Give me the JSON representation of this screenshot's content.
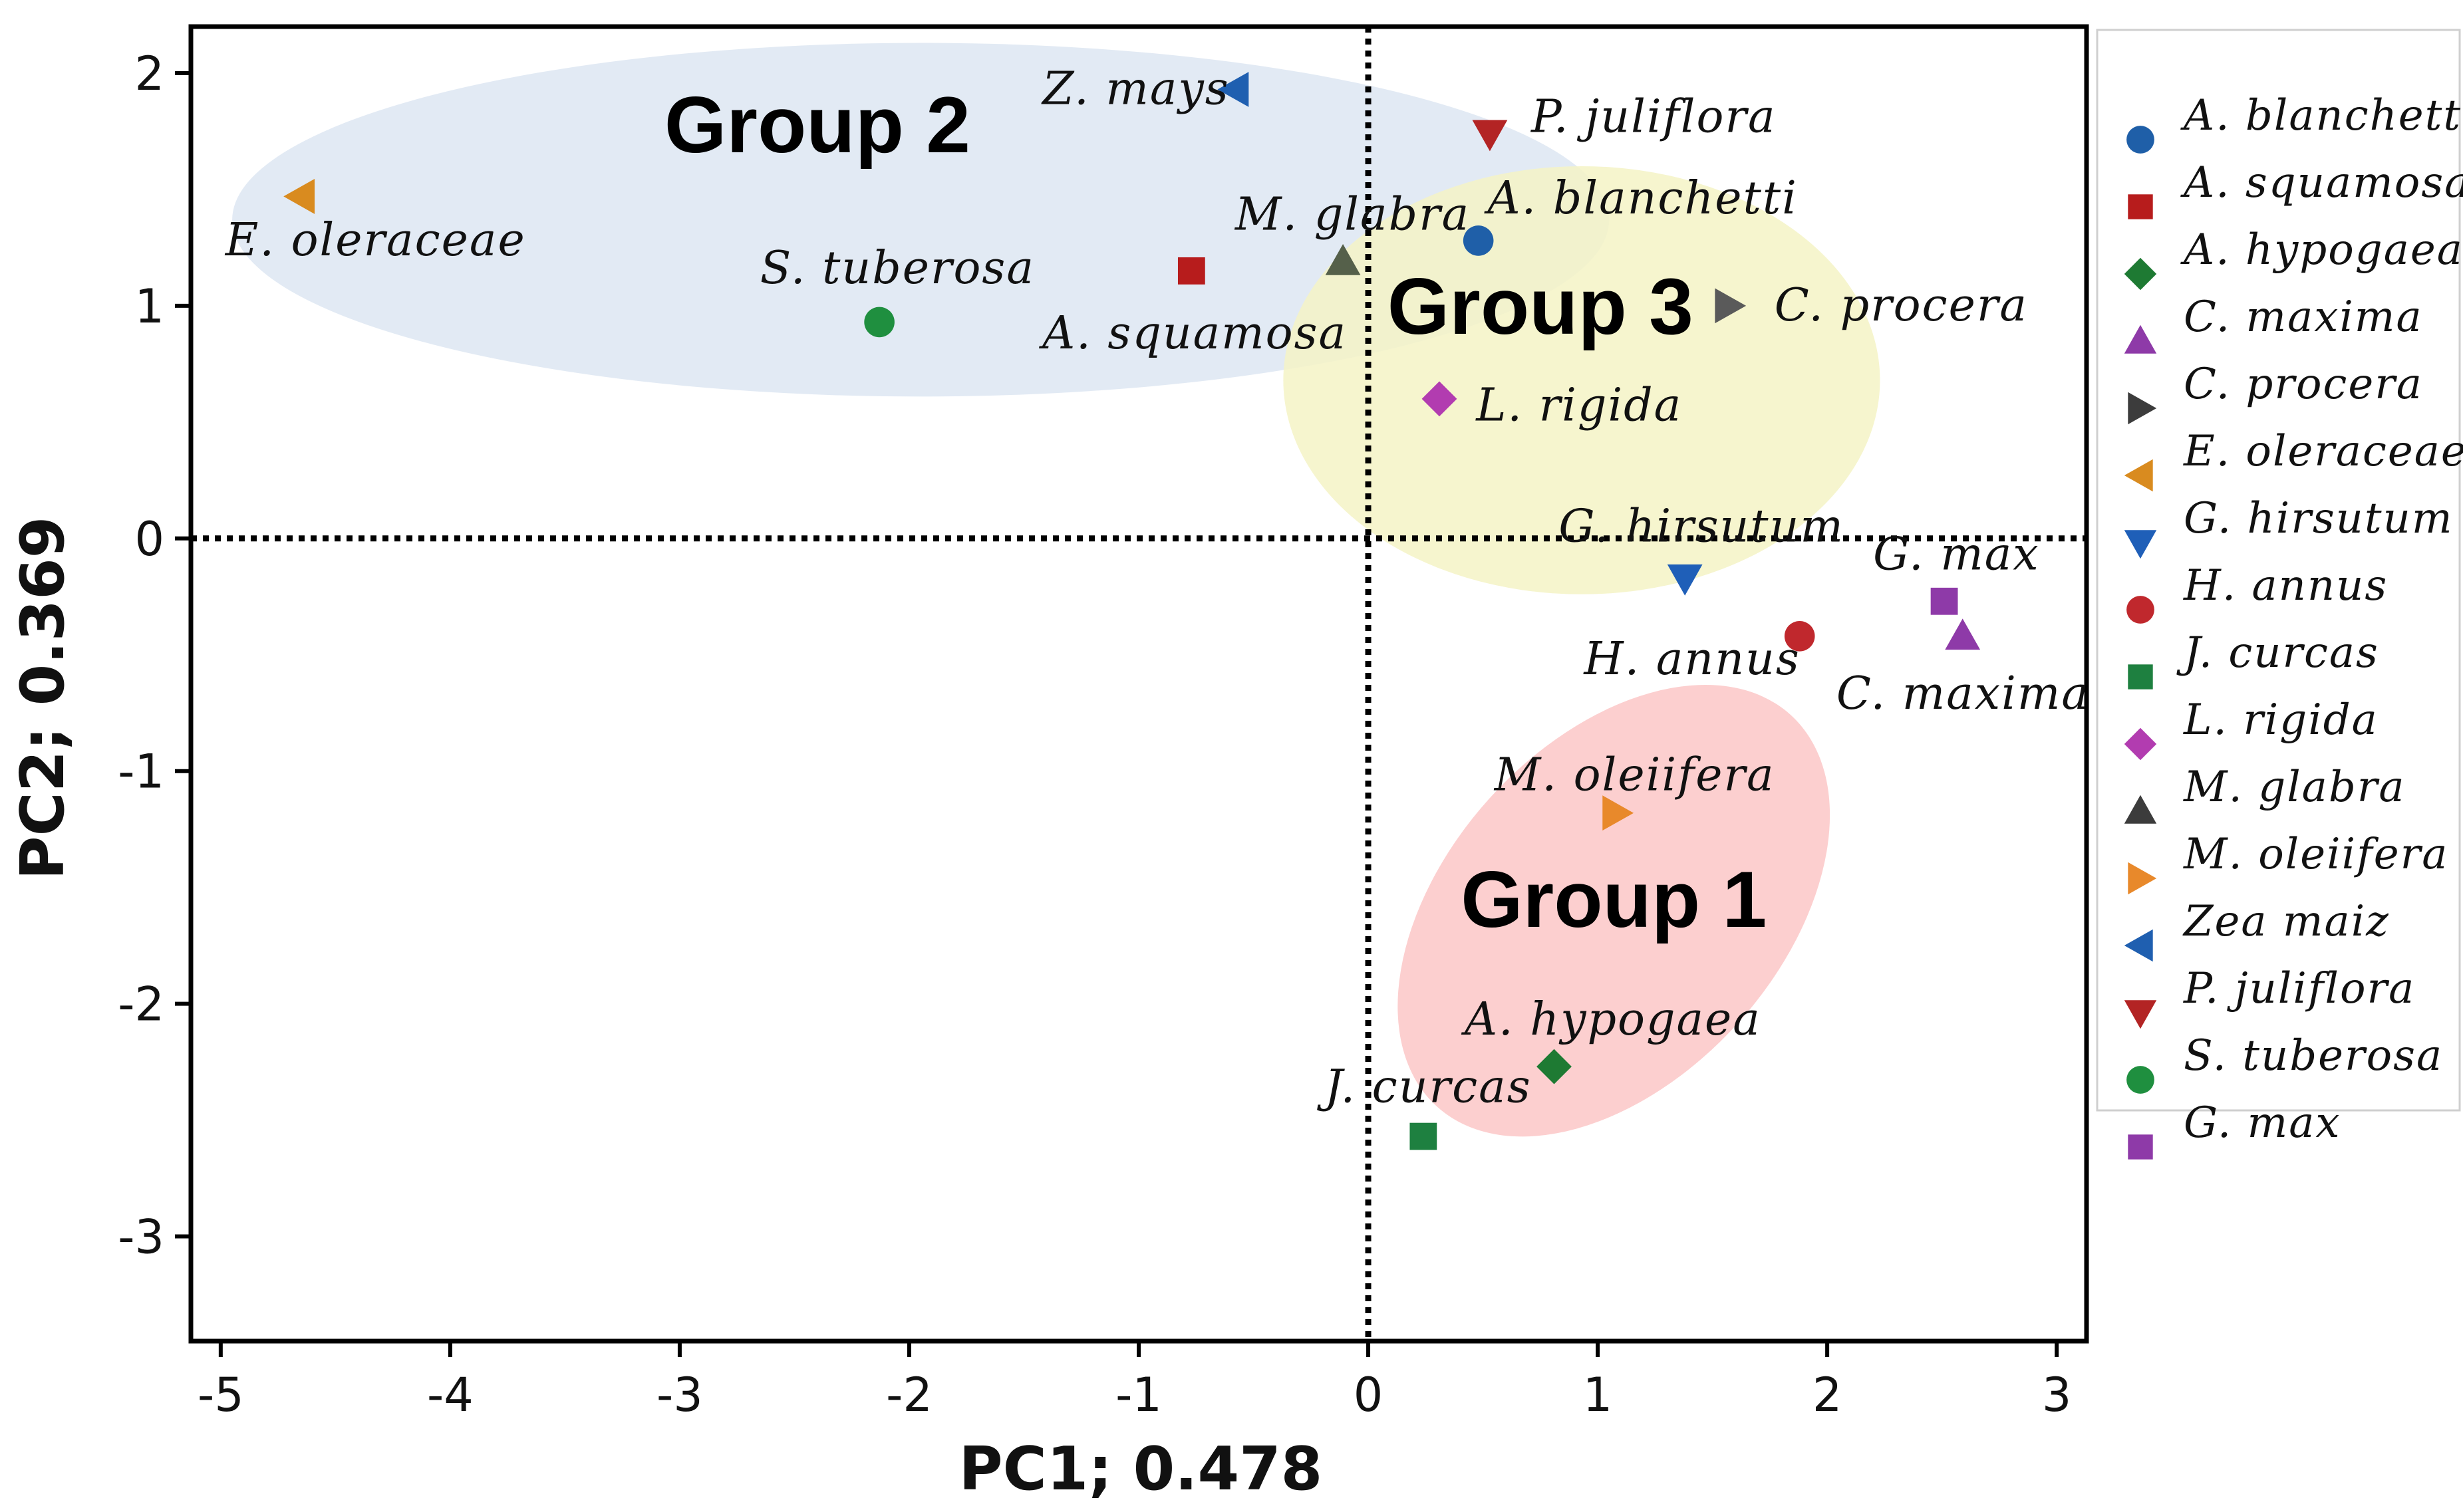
{
  "chart_data": {
    "type": "scatter",
    "xlabel": "PC1; 0.478",
    "ylabel": "PC2; 0.369",
    "xlim": [
      -5.13,
      3.13
    ],
    "ylim": [
      -3.45,
      2.2
    ],
    "xticks": [
      -5,
      -4,
      -3,
      -2,
      -1,
      0,
      1,
      2,
      3
    ],
    "yticks": [
      -3,
      -2,
      -1,
      0,
      1,
      2
    ],
    "xtick_labels": [
      "-5",
      "-4",
      "-3",
      "-2",
      "-1",
      "0",
      "1",
      "2",
      "3"
    ],
    "ytick_labels": [
      "-3",
      "-2",
      "-1",
      "0",
      "1",
      "2"
    ],
    "reference_lines": {
      "x": 0,
      "y": 0,
      "style": "dotted"
    },
    "groups": [
      {
        "name": "Group 1",
        "color": "#fcc7c7",
        "center": [
          1.07,
          -1.6
        ],
        "semi_axes": [
          1.15,
          0.72
        ],
        "angle_deg": -48,
        "label_pos": [
          1.07,
          -1.55
        ]
      },
      {
        "name": "Group 2",
        "color": "#dde6f2",
        "center": [
          -1.95,
          1.37
        ],
        "semi_axes": [
          3.0,
          0.76
        ],
        "angle_deg": 0,
        "label_pos": [
          -2.4,
          1.78
        ]
      },
      {
        "name": "Group 3",
        "color": "#f5f3c5",
        "center": [
          0.93,
          0.68
        ],
        "semi_axes": [
          1.3,
          0.92
        ],
        "angle_deg": 0,
        "label_pos": [
          0.75,
          1.0
        ]
      }
    ],
    "points": [
      {
        "label": "Z. mays",
        "x": -0.58,
        "y": 1.93,
        "shape": "triangle-left",
        "color": "#1f5fb0",
        "label_x": -1.42,
        "label_y": 1.93
      },
      {
        "label": "P. juliflora",
        "x": 0.53,
        "y": 1.74,
        "shape": "triangle-down",
        "color": "#b32424",
        "label_x": 0.71,
        "label_y": 1.81
      },
      {
        "label": "E. oleraceae",
        "x": -4.65,
        "y": 1.47,
        "shape": "triangle-left",
        "color": "#d98b1f",
        "label_x": -4.98,
        "label_y": 1.28
      },
      {
        "label": "M. glabra",
        "x": -0.11,
        "y": 1.19,
        "shape": "triangle-up",
        "color": "#55604a",
        "label_x": -0.58,
        "label_y": 1.39
      },
      {
        "label": "A. blanchetti",
        "x": 0.48,
        "y": 1.28,
        "shape": "circle",
        "color": "#1f5fa8",
        "label_x": 0.52,
        "label_y": 1.46
      },
      {
        "label": "S. tuberosa",
        "x": -2.13,
        "y": 0.93,
        "shape": "circle",
        "color": "#1f8f3f",
        "label_x": -2.65,
        "label_y": 1.16
      },
      {
        "label": "A. squamosa",
        "x": -0.77,
        "y": 1.15,
        "shape": "square",
        "color": "#b71c1c",
        "label_x": -1.42,
        "label_y": 0.88
      },
      {
        "label": "C. procera",
        "x": 1.57,
        "y": 1.0,
        "shape": "triangle-right",
        "color": "#5a5a5a",
        "label_x": 1.77,
        "label_y": 1.0
      },
      {
        "label": "L. rigida",
        "x": 0.31,
        "y": 0.6,
        "shape": "diamond",
        "color": "#b23cb0",
        "label_x": 0.47,
        "label_y": 0.57
      },
      {
        "label": "G. hirsutum",
        "x": 1.38,
        "y": -0.17,
        "shape": "triangle-down",
        "color": "#1f5fb8",
        "label_x": 0.83,
        "label_y": 0.05
      },
      {
        "label": "G. max",
        "x": 2.51,
        "y": -0.27,
        "shape": "square",
        "color": "#8e3aa8",
        "label_x": 2.2,
        "label_y": -0.07
      },
      {
        "label": "H. annus",
        "x": 1.88,
        "y": -0.42,
        "shape": "circle",
        "color": "#c0282d",
        "label_x": 0.94,
        "label_y": -0.52
      },
      {
        "label": "C. maxima",
        "x": 2.59,
        "y": -0.42,
        "shape": "triangle-up",
        "color": "#8e3aa8",
        "label_x": 2.04,
        "label_y": -0.67
      },
      {
        "label": "M. oleiifera",
        "x": 1.08,
        "y": -1.18,
        "shape": "triangle-right",
        "color": "#e8892b",
        "label_x": 0.55,
        "label_y": -1.02
      },
      {
        "label": "A. hypogaea",
        "x": 0.81,
        "y": -2.27,
        "shape": "diamond",
        "color": "#1e7a33",
        "label_x": 0.42,
        "label_y": -2.07
      },
      {
        "label": "J. curcas",
        "x": 0.24,
        "y": -2.57,
        "shape": "square",
        "color": "#1e8040",
        "label_x": -0.19,
        "label_y": -2.36
      }
    ],
    "legend": {
      "position": "right",
      "items": [
        {
          "label": "A. blanchetti",
          "shape": "circle",
          "color": "#1f5fa8"
        },
        {
          "label": "A. squamosa",
          "shape": "square",
          "color": "#b71c1c"
        },
        {
          "label": "A. hypogaea",
          "shape": "diamond",
          "color": "#1e7a33"
        },
        {
          "label": "C. maxima",
          "shape": "triangle-up",
          "color": "#8e3aa8"
        },
        {
          "label": "C. procera",
          "shape": "triangle-right",
          "color": "#3c3c3c"
        },
        {
          "label": "E. oleraceae",
          "shape": "triangle-left",
          "color": "#d98b1f"
        },
        {
          "label": "G. hirsutum",
          "shape": "triangle-down",
          "color": "#1f5fb8"
        },
        {
          "label": "H. annus",
          "shape": "circle",
          "color": "#c0282d"
        },
        {
          "label": "J. curcas",
          "shape": "square",
          "color": "#1e8040"
        },
        {
          "label": "L. rigida",
          "shape": "diamond",
          "color": "#b23cb0"
        },
        {
          "label": "M. glabra",
          "shape": "triangle-up",
          "color": "#3c3c3c"
        },
        {
          "label": "M. oleiifera",
          "shape": "triangle-right",
          "color": "#e8892b"
        },
        {
          "label": "Zea maiz",
          "shape": "triangle-left",
          "color": "#1f5fb0"
        },
        {
          "label": "P. juliflora",
          "shape": "triangle-down",
          "color": "#b32424"
        },
        {
          "label": "S. tuberosa",
          "shape": "circle",
          "color": "#1f8f3f"
        },
        {
          "label": "G. max",
          "shape": "square",
          "color": "#8e3aa8"
        }
      ]
    }
  }
}
